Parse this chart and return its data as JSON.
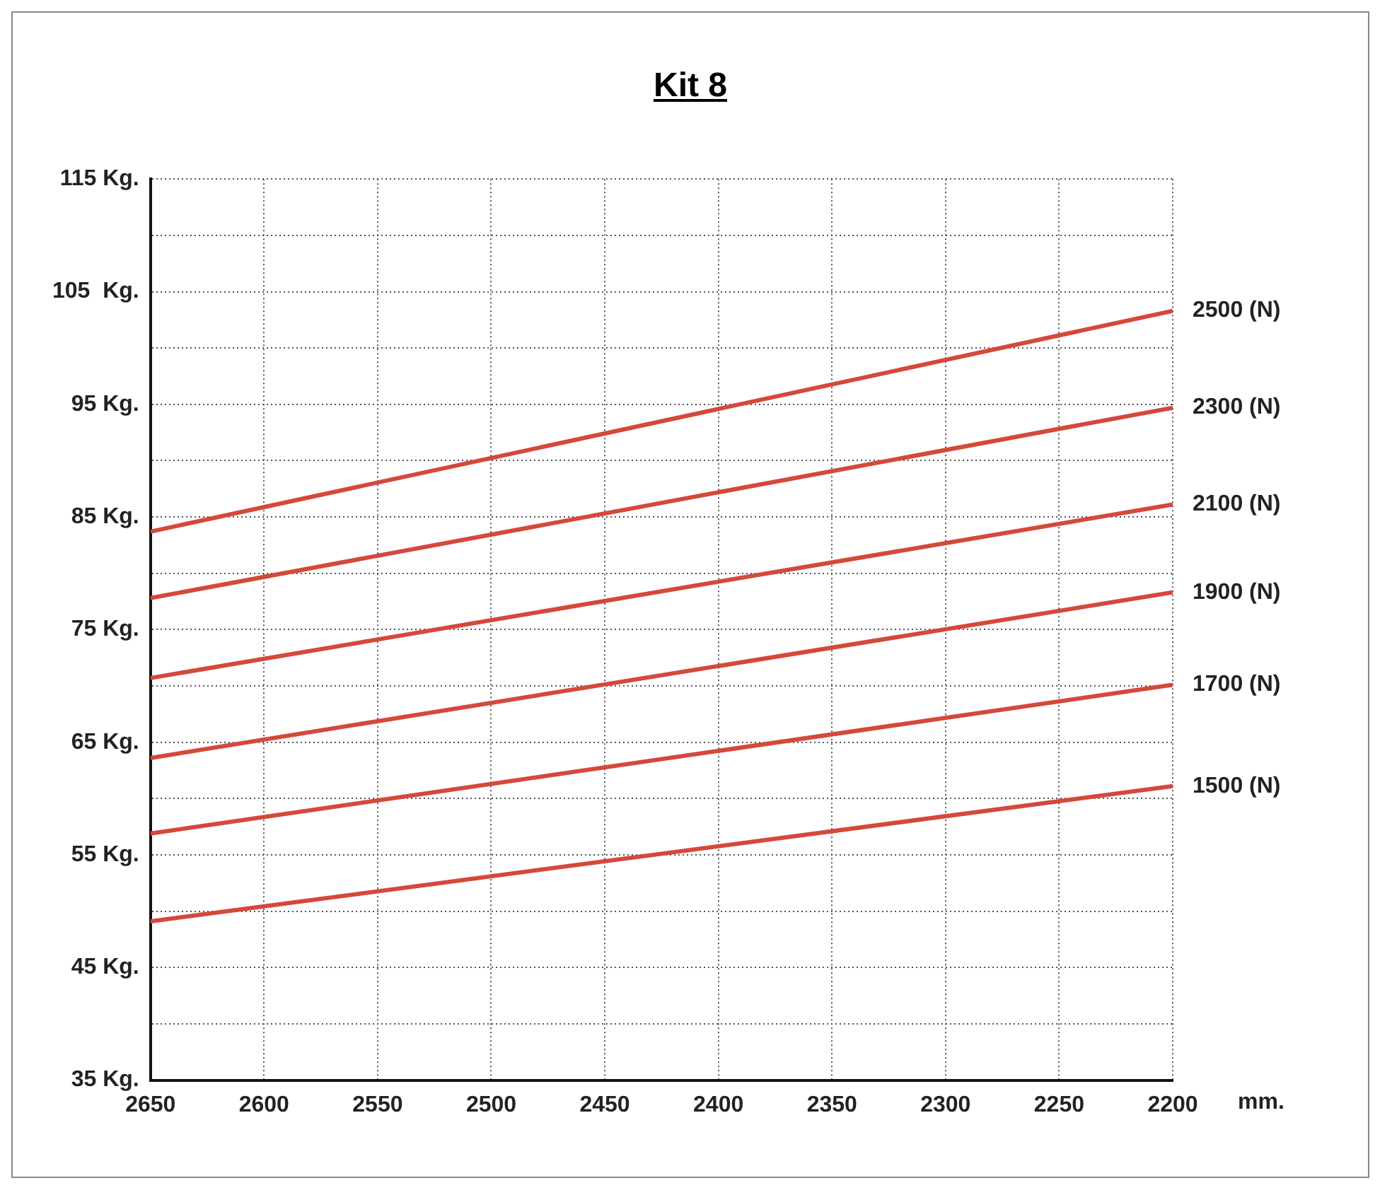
{
  "chart_data": {
    "type": "line",
    "title": "Kit 8",
    "xlabel": "mm.",
    "x": [
      2650,
      2200
    ],
    "series": [
      {
        "name": "2500 (N)",
        "color": "#d5483b",
        "values": [
          83.7,
          103.3
        ]
      },
      {
        "name": "2300 (N)",
        "color": "#d5483b",
        "values": [
          77.8,
          94.7
        ]
      },
      {
        "name": "2100 (N)",
        "color": "#d5483b",
        "values": [
          70.7,
          86.1
        ]
      },
      {
        "name": "1900 (N)",
        "color": "#d5483b",
        "values": [
          63.6,
          78.3
        ]
      },
      {
        "name": "1700 (N)",
        "color": "#d5483b",
        "values": [
          56.9,
          70.1
        ]
      },
      {
        "name": "1500 (N)",
        "color": "#d5483b",
        "values": [
          49.1,
          61.1
        ]
      }
    ],
    "xlim": [
      2650,
      2200
    ],
    "xticks": [
      2650,
      2600,
      2550,
      2500,
      2450,
      2400,
      2350,
      2300,
      2250,
      2200
    ],
    "ylim": [
      35,
      115
    ],
    "yticks": [
      {
        "value": 35,
        "label": "35 Kg."
      },
      {
        "value": 40,
        "label": null
      },
      {
        "value": 45,
        "label": "45 Kg."
      },
      {
        "value": 50,
        "label": null
      },
      {
        "value": 55,
        "label": "55 Kg."
      },
      {
        "value": 60,
        "label": null
      },
      {
        "value": 65,
        "label": "65 Kg."
      },
      {
        "value": 70,
        "label": null
      },
      {
        "value": 75,
        "label": "75 Kg."
      },
      {
        "value": 80,
        "label": null
      },
      {
        "value": 85,
        "label": "85 Kg."
      },
      {
        "value": 90,
        "label": null
      },
      {
        "value": 95,
        "label": "95 Kg."
      },
      {
        "value": 100,
        "label": null
      },
      {
        "value": 105,
        "label": "105  Kg."
      },
      {
        "value": 110,
        "label": null
      },
      {
        "value": 115,
        "label": "115 Kg."
      }
    ],
    "grid": true,
    "legend": false,
    "marker": "none",
    "line_style": "solid"
  }
}
